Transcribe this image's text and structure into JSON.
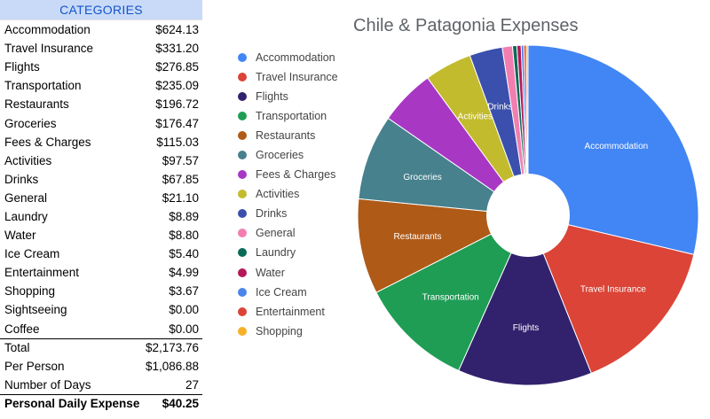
{
  "table": {
    "header": "CATEGORIES",
    "rows": [
      {
        "label": "Accommodation",
        "value": "$624.13"
      },
      {
        "label": "Travel Insurance",
        "value": "$331.20"
      },
      {
        "label": "Flights",
        "value": "$276.85"
      },
      {
        "label": "Transportation",
        "value": "$235.09"
      },
      {
        "label": "Restaurants",
        "value": "$196.72"
      },
      {
        "label": "Groceries",
        "value": "$176.47"
      },
      {
        "label": "Fees & Charges",
        "value": "$115.03"
      },
      {
        "label": "Activities",
        "value": "$97.57"
      },
      {
        "label": "Drinks",
        "value": "$67.85"
      },
      {
        "label": "General",
        "value": "$21.10"
      },
      {
        "label": "Laundry",
        "value": "$8.89"
      },
      {
        "label": "Water",
        "value": "$8.80"
      },
      {
        "label": "Ice Cream",
        "value": "$5.40"
      },
      {
        "label": "Entertainment",
        "value": "$4.99"
      },
      {
        "label": "Shopping",
        "value": "$3.67"
      },
      {
        "label": "Sightseeing",
        "value": "$0.00"
      },
      {
        "label": "Coffee",
        "value": "$0.00"
      }
    ],
    "total": {
      "label": "Total",
      "value": "$2,173.76"
    },
    "per_person": {
      "label": "Per Person",
      "value": "$1,086.88"
    },
    "days": {
      "label": "Number of Days",
      "value": "27"
    },
    "daily": {
      "label": "Personal Daily Expense",
      "value": "$40.25"
    }
  },
  "chart_data": {
    "type": "pie",
    "title": "Chile & Patagonia Expenses",
    "donut_hole": true,
    "slices": [
      {
        "name": "Accommodation",
        "value": 624.13,
        "color": "#4285f4"
      },
      {
        "name": "Travel Insurance",
        "value": 331.2,
        "color": "#db4437"
      },
      {
        "name": "Flights",
        "value": 276.85,
        "color": "#32226d"
      },
      {
        "name": "Transportation",
        "value": 235.09,
        "color": "#1f9d55"
      },
      {
        "name": "Restaurants",
        "value": 196.72,
        "color": "#b05a17"
      },
      {
        "name": "Groceries",
        "value": 176.47,
        "color": "#46818d"
      },
      {
        "name": "Fees & Charges",
        "value": 115.03,
        "color": "#a837c4"
      },
      {
        "name": "Activities",
        "value": 97.57,
        "color": "#c2bb2e"
      },
      {
        "name": "Drinks",
        "value": 67.85,
        "color": "#3b4fad"
      },
      {
        "name": "General",
        "value": 21.1,
        "color": "#f27eb0"
      },
      {
        "name": "Laundry",
        "value": 8.89,
        "color": "#0b6b57"
      },
      {
        "name": "Water",
        "value": 8.8,
        "color": "#b5185a"
      },
      {
        "name": "Ice Cream",
        "value": 5.4,
        "color": "#4a86e8"
      },
      {
        "name": "Entertainment",
        "value": 4.99,
        "color": "#db4437"
      },
      {
        "name": "Shopping",
        "value": 3.67,
        "color": "#f6b128"
      }
    ],
    "slice_labels": [
      "Accommodation",
      "Travel Insurance",
      "Flights",
      "Transportation",
      "Restaurants",
      "Groceries",
      "Activities",
      "Drinks"
    ],
    "legend_position": "left"
  }
}
